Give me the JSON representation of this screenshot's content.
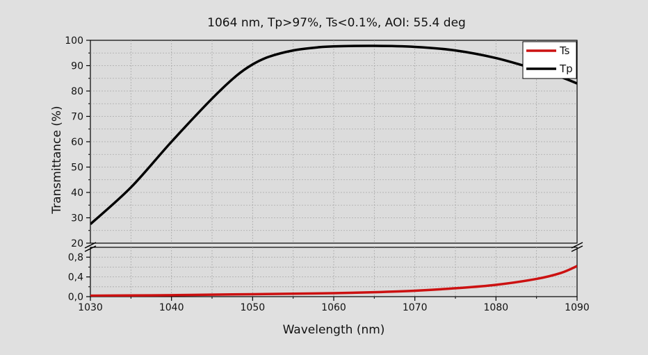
{
  "chart_data": {
    "type": "line",
    "title": "1064 nm, Tp>97%, Ts<0.1%, AOI: 55.4 deg",
    "xlabel": "Wavelength (nm)",
    "ylabel": "Transmittance (%)",
    "xlim": [
      1030,
      1090
    ],
    "x_ticks": [
      "1030",
      "1040",
      "1050",
      "1060",
      "1070",
      "1080",
      "1090"
    ],
    "y_axis_break": true,
    "y_upper_range": [
      20,
      100
    ],
    "y_upper_ticks": [
      "20",
      "30",
      "40",
      "50",
      "60",
      "70",
      "80",
      "90",
      "100"
    ],
    "y_lower_range": [
      0,
      1
    ],
    "y_lower_ticks": [
      "0,0",
      "0,4",
      "0,8"
    ],
    "grid": true,
    "legend_position": "top-right",
    "series": [
      {
        "name": "Ts",
        "color": "#cc1111",
        "x": [
          1030,
          1035,
          1040,
          1045,
          1050,
          1055,
          1060,
          1065,
          1070,
          1075,
          1080,
          1085,
          1088,
          1090
        ],
        "y": [
          0.02,
          0.025,
          0.03,
          0.04,
          0.05,
          0.06,
          0.07,
          0.09,
          0.12,
          0.17,
          0.24,
          0.36,
          0.48,
          0.62
        ]
      },
      {
        "name": "Tp",
        "color": "#000000",
        "x": [
          1030,
          1035,
          1040,
          1045,
          1048,
          1050,
          1052,
          1055,
          1058,
          1060,
          1065,
          1070,
          1075,
          1080,
          1085,
          1088,
          1090
        ],
        "y": [
          27.5,
          42,
          60,
          77,
          86,
          90.5,
          93.5,
          96,
          97.2,
          97.6,
          97.8,
          97.4,
          96,
          93,
          88.5,
          85.5,
          83
        ]
      }
    ]
  }
}
